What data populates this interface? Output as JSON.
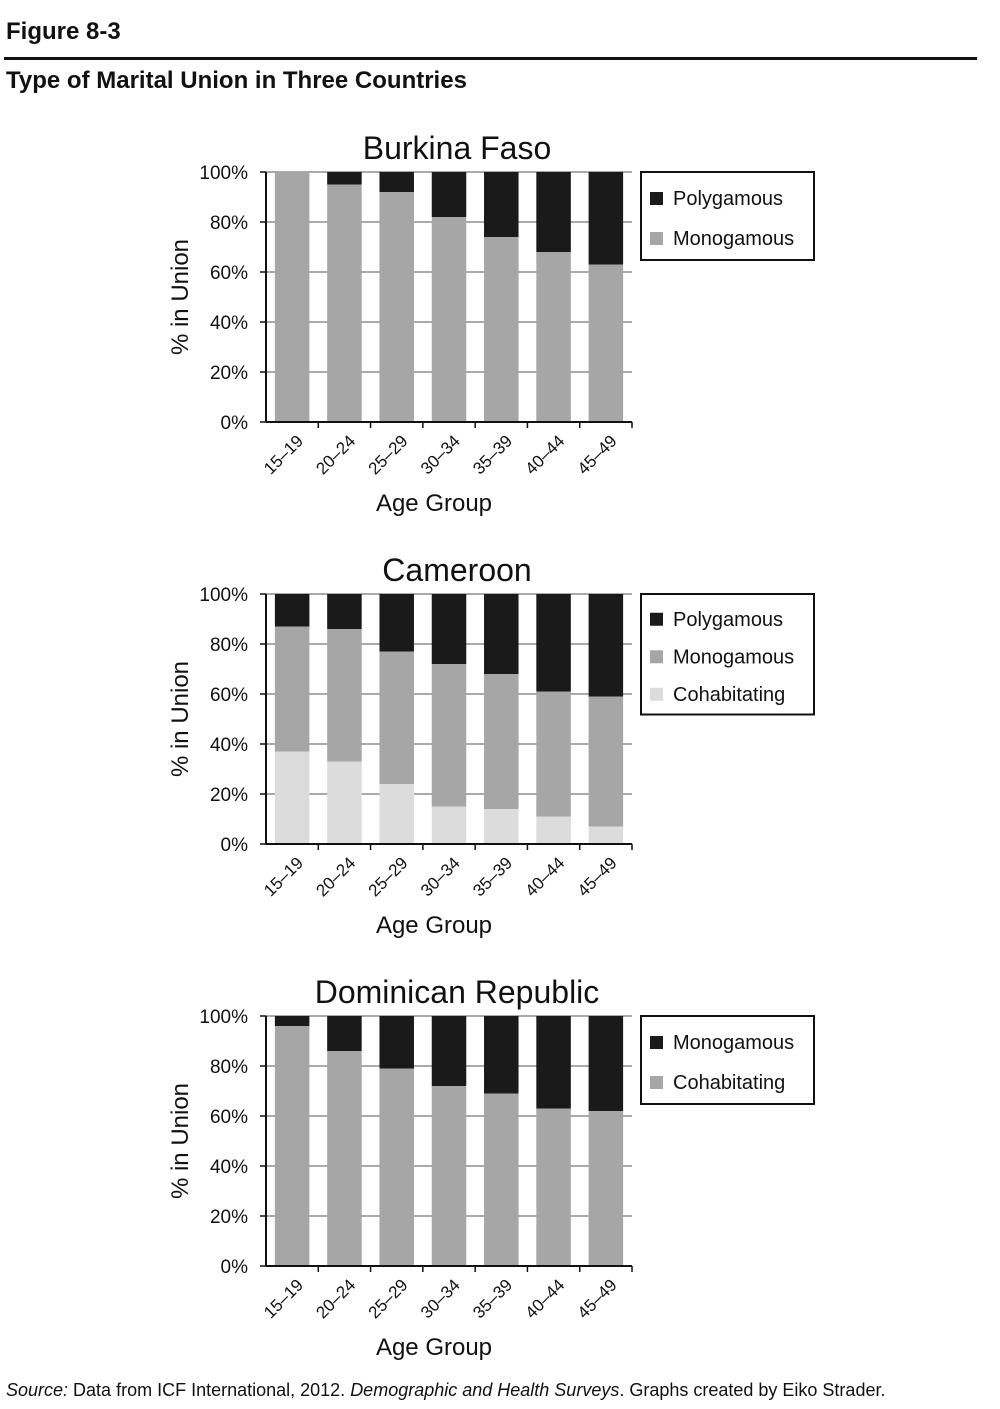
{
  "figure_number": "Figure 8-3",
  "figure_title": "Type of Marital Union in Three Countries",
  "source": {
    "label": "Source:",
    "text1": " Data from ICF International, 2012. ",
    "italic": "Demographic and Health Surveys",
    "text2": ". Graphs created by Eiko Strader."
  },
  "colors": {
    "black": "#1a1a1a",
    "mid_gray": "#a6a6a6",
    "light_gray": "#dcdcdc"
  },
  "chart_data": [
    {
      "type": "bar",
      "stacked": true,
      "title": "Burkina Faso",
      "xlabel": "Age Group",
      "ylabel": "% in Union",
      "ylim": [
        0,
        100
      ],
      "yticks": [
        "0%",
        "20%",
        "40%",
        "60%",
        "80%",
        "100%"
      ],
      "categories": [
        "15–19",
        "20–24",
        "25–29",
        "30–34",
        "35–39",
        "40–44",
        "45–49"
      ],
      "legend_position": "right",
      "series": [
        {
          "name": "Monogamous",
          "color": "#a6a6a6",
          "values": [
            100,
            95,
            92,
            82,
            74,
            68,
            63
          ]
        },
        {
          "name": "Polygamous",
          "color": "#1a1a1a",
          "values": [
            0,
            5,
            8,
            18,
            26,
            32,
            37
          ]
        }
      ],
      "legend_order": [
        "Polygamous",
        "Monogamous"
      ]
    },
    {
      "type": "bar",
      "stacked": true,
      "title": "Cameroon",
      "xlabel": "Age Group",
      "ylabel": "% in Union",
      "ylim": [
        0,
        100
      ],
      "yticks": [
        "0%",
        "20%",
        "40%",
        "60%",
        "80%",
        "100%"
      ],
      "categories": [
        "15–19",
        "20–24",
        "25–29",
        "30–34",
        "35–39",
        "40–44",
        "45–49"
      ],
      "legend_position": "right",
      "series": [
        {
          "name": "Cohabitating",
          "color": "#dcdcdc",
          "values": [
            37,
            33,
            24,
            15,
            14,
            11,
            7
          ]
        },
        {
          "name": "Monogamous",
          "color": "#a6a6a6",
          "values": [
            50,
            53,
            53,
            57,
            54,
            50,
            52
          ]
        },
        {
          "name": "Polygamous",
          "color": "#1a1a1a",
          "values": [
            13,
            14,
            23,
            28,
            32,
            39,
            41
          ]
        }
      ],
      "legend_order": [
        "Polygamous",
        "Monogamous",
        "Cohabitating"
      ]
    },
    {
      "type": "bar",
      "stacked": true,
      "title": "Dominican Republic",
      "xlabel": "Age Group",
      "ylabel": "% in Union",
      "ylim": [
        0,
        100
      ],
      "yticks": [
        "0%",
        "20%",
        "40%",
        "60%",
        "80%",
        "100%"
      ],
      "categories": [
        "15–19",
        "20–24",
        "25–29",
        "30–34",
        "35–39",
        "40–44",
        "45–49"
      ],
      "legend_position": "right",
      "series": [
        {
          "name": "Cohabitating",
          "color": "#a6a6a6",
          "values": [
            96,
            86,
            79,
            72,
            69,
            63,
            62
          ]
        },
        {
          "name": "Monogamous",
          "color": "#1a1a1a",
          "values": [
            4,
            14,
            21,
            28,
            31,
            37,
            38
          ]
        }
      ],
      "legend_order": [
        "Monogamous",
        "Cohabitating"
      ]
    }
  ]
}
